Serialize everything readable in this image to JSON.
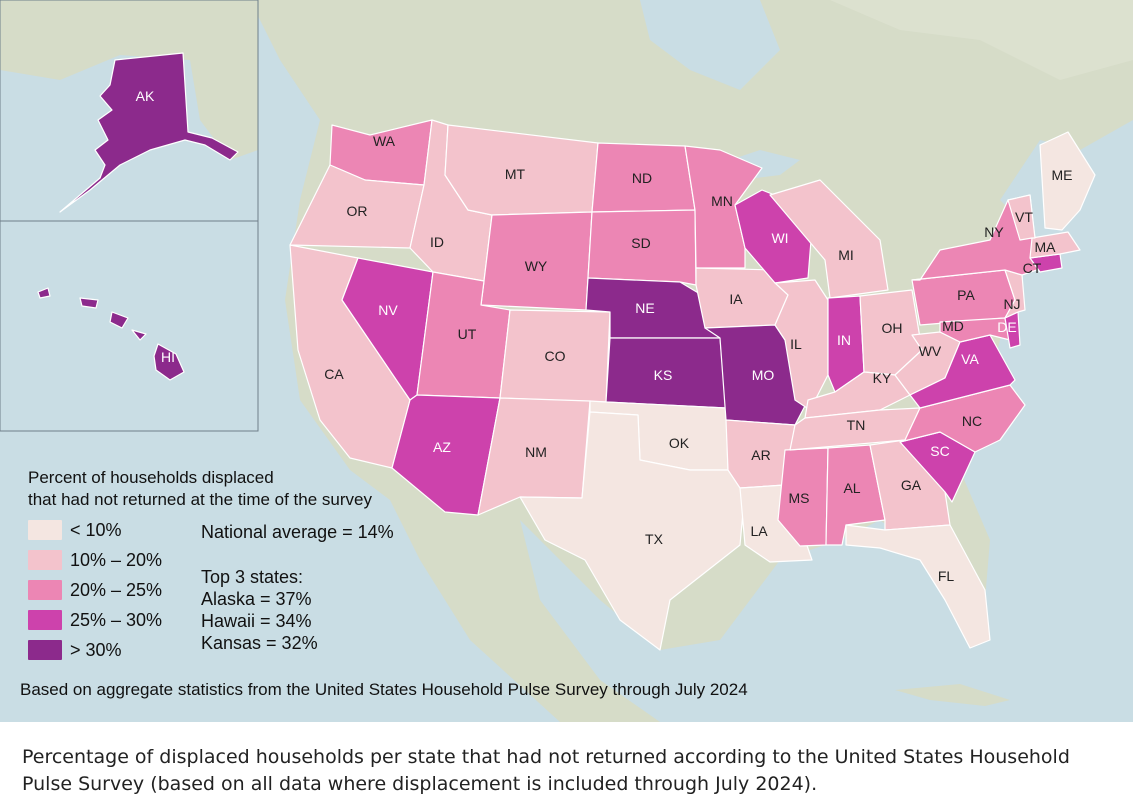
{
  "colors": {
    "lt10": "#f4e6e1",
    "b10_20": "#f3c3cc",
    "b20_25": "#ec86b4",
    "b25_30": "#cd42ac",
    "gt30": "#8c2a8c",
    "ocean": "#c9dde4",
    "land": "#d6dcc8"
  },
  "legend": {
    "title_line1": "Percent of households displaced",
    "title_line2": "that had not returned at the time of the survey",
    "bins": [
      {
        "label": "< 10%",
        "color_key": "lt10"
      },
      {
        "label": "10% – 20%",
        "color_key": "b10_20"
      },
      {
        "label": "20% – 25%",
        "color_key": "b20_25"
      },
      {
        "label": "25% – 30%",
        "color_key": "b25_30"
      },
      {
        "label": "> 30%",
        "color_key": "gt30"
      }
    ]
  },
  "stats": {
    "national_average": "National average = 14%",
    "top_heading": "Top 3 states:",
    "top": [
      "Alaska = 37%",
      "Hawaii = 34%",
      "Kansas = 32%"
    ]
  },
  "footnote": "Based on aggregate statistics from the United States Household Pulse Survey through July 2024",
  "caption": "Percentage of displaced households per state that had not returned according to the United States Household Pulse Survey (based on all data where displacement is included through July 2024).",
  "states": [
    {
      "abbr": "AK",
      "bin": "gt30"
    },
    {
      "abbr": "HI",
      "bin": "gt30"
    },
    {
      "abbr": "WA",
      "bin": "b20_25"
    },
    {
      "abbr": "OR",
      "bin": "b10_20"
    },
    {
      "abbr": "CA",
      "bin": "b10_20"
    },
    {
      "abbr": "NV",
      "bin": "b25_30"
    },
    {
      "abbr": "ID",
      "bin": "b10_20"
    },
    {
      "abbr": "MT",
      "bin": "b10_20"
    },
    {
      "abbr": "WY",
      "bin": "b20_25"
    },
    {
      "abbr": "UT",
      "bin": "b20_25"
    },
    {
      "abbr": "AZ",
      "bin": "b25_30"
    },
    {
      "abbr": "CO",
      "bin": "b10_20"
    },
    {
      "abbr": "NM",
      "bin": "b10_20"
    },
    {
      "abbr": "ND",
      "bin": "b20_25"
    },
    {
      "abbr": "SD",
      "bin": "b20_25"
    },
    {
      "abbr": "NE",
      "bin": "gt30"
    },
    {
      "abbr": "KS",
      "bin": "gt30"
    },
    {
      "abbr": "OK",
      "bin": "lt10"
    },
    {
      "abbr": "TX",
      "bin": "lt10"
    },
    {
      "abbr": "MN",
      "bin": "b20_25"
    },
    {
      "abbr": "IA",
      "bin": "b10_20"
    },
    {
      "abbr": "MO",
      "bin": "gt30"
    },
    {
      "abbr": "AR",
      "bin": "b10_20"
    },
    {
      "abbr": "LA",
      "bin": "lt10"
    },
    {
      "abbr": "WI",
      "bin": "b25_30"
    },
    {
      "abbr": "IL",
      "bin": "b10_20"
    },
    {
      "abbr": "MS",
      "bin": "b20_25"
    },
    {
      "abbr": "MI",
      "bin": "b10_20"
    },
    {
      "abbr": "IN",
      "bin": "b25_30"
    },
    {
      "abbr": "KY",
      "bin": "b10_20"
    },
    {
      "abbr": "TN",
      "bin": "b10_20"
    },
    {
      "abbr": "AL",
      "bin": "b20_25"
    },
    {
      "abbr": "OH",
      "bin": "b10_20"
    },
    {
      "abbr": "WV",
      "bin": "b10_20"
    },
    {
      "abbr": "GA",
      "bin": "b10_20"
    },
    {
      "abbr": "FL",
      "bin": "lt10"
    },
    {
      "abbr": "SC",
      "bin": "b25_30"
    },
    {
      "abbr": "NC",
      "bin": "b20_25"
    },
    {
      "abbr": "VA",
      "bin": "b25_30"
    },
    {
      "abbr": "PA",
      "bin": "b20_25"
    },
    {
      "abbr": "MD",
      "bin": "b20_25"
    },
    {
      "abbr": "DE",
      "bin": "b25_30"
    },
    {
      "abbr": "NJ",
      "bin": "b10_20"
    },
    {
      "abbr": "NY",
      "bin": "b20_25"
    },
    {
      "abbr": "CT",
      "bin": "b25_30"
    },
    {
      "abbr": "MA",
      "bin": "b10_20"
    },
    {
      "abbr": "VT",
      "bin": "b10_20"
    },
    {
      "abbr": "ME",
      "bin": "lt10"
    }
  ]
}
